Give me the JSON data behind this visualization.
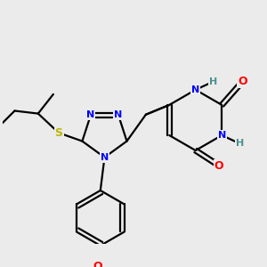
{
  "bg_color": "#ebebeb",
  "atom_colors": {
    "C": "#000000",
    "N": "#0000ff",
    "O": "#ff0000",
    "S": "#b8b800",
    "H": "#4a9090"
  },
  "bond_color": "#000000",
  "bond_width": 1.6,
  "figsize": [
    3.0,
    3.0
  ],
  "dpi": 100
}
